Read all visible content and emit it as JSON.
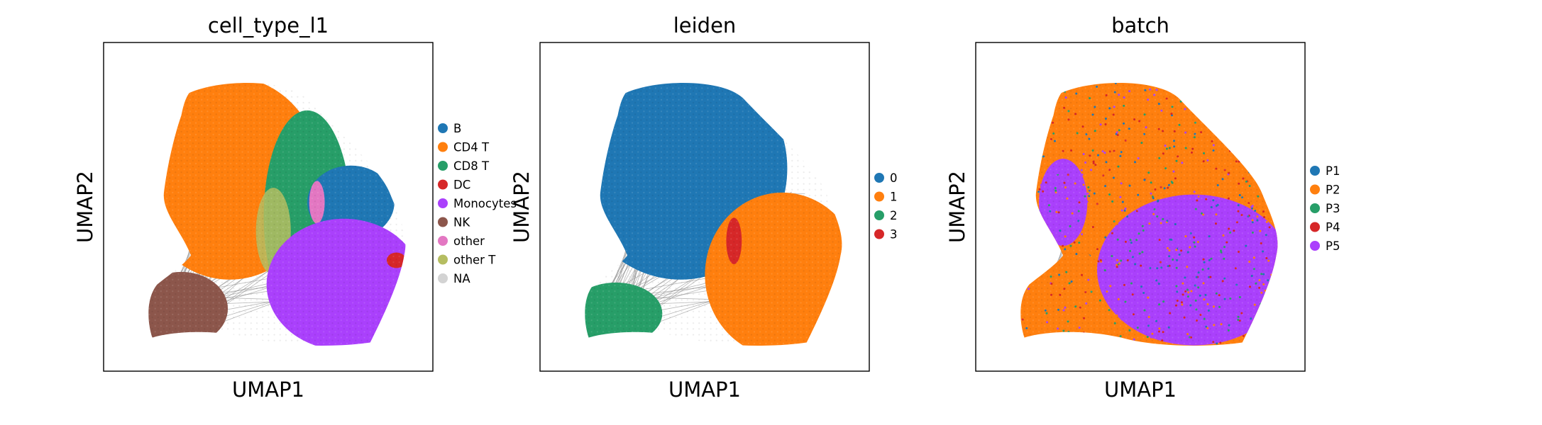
{
  "chart_data": [
    {
      "type": "scatter",
      "title": "cell_type_l1",
      "xlabel": "UMAP1",
      "ylabel": "UMAP2",
      "grid": false,
      "ticks": false,
      "legend_placement": "right",
      "edges_drawn": true,
      "edge_color": "#808080",
      "series": [
        {
          "name": "B",
          "color": "#1f77b4",
          "region": "upper-right"
        },
        {
          "name": "CD4 T",
          "color": "#ff7f0e",
          "region": "upper-left"
        },
        {
          "name": "CD8 T",
          "color": "#279e68",
          "region": "center"
        },
        {
          "name": "DC",
          "color": "#d62728",
          "region": "right-edge"
        },
        {
          "name": "Monocytes",
          "color": "#aa40fc",
          "region": "lower-right"
        },
        {
          "name": "NK",
          "color": "#8c564b",
          "region": "lower-left"
        },
        {
          "name": "other",
          "color": "#e377c2",
          "region": "center"
        },
        {
          "name": "other T",
          "color": "#b5bd61",
          "region": "center-left"
        },
        {
          "name": "NA",
          "color": "#d3d3d3",
          "region": "none"
        }
      ]
    },
    {
      "type": "scatter",
      "title": "leiden",
      "xlabel": "UMAP1",
      "ylabel": "UMAP2",
      "grid": false,
      "ticks": false,
      "legend_placement": "right",
      "edges_drawn": true,
      "edge_color": "#808080",
      "series": [
        {
          "name": "0",
          "color": "#1f77b4",
          "region": "upper-left"
        },
        {
          "name": "1",
          "color": "#ff7f0e",
          "region": "lower-right"
        },
        {
          "name": "2",
          "color": "#279e68",
          "region": "lower-left"
        },
        {
          "name": "3",
          "color": "#d62728",
          "region": "center"
        }
      ]
    },
    {
      "type": "scatter",
      "title": "batch",
      "xlabel": "UMAP1",
      "ylabel": "UMAP2",
      "grid": false,
      "ticks": false,
      "legend_placement": "right",
      "edges_drawn": true,
      "edge_color": "#808080",
      "series": [
        {
          "name": "P1",
          "color": "#1f77b4",
          "region": "scattered"
        },
        {
          "name": "P2",
          "color": "#ff7f0e",
          "region": "upper"
        },
        {
          "name": "P3",
          "color": "#279e68",
          "region": "scattered"
        },
        {
          "name": "P4",
          "color": "#d62728",
          "region": "scattered"
        },
        {
          "name": "P5",
          "color": "#aa40fc",
          "region": "lower-center"
        }
      ]
    }
  ]
}
